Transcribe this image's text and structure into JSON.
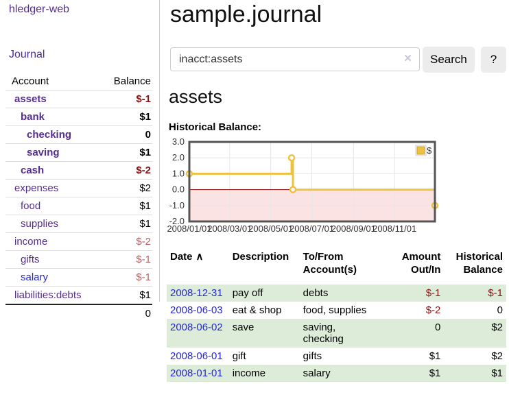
{
  "app": {
    "brand": "hledger-web",
    "nav_journal": "Journal"
  },
  "header": {
    "title": "sample.journal"
  },
  "search": {
    "value": "inacct:assets",
    "clear_icon": "×",
    "button_label": "Search",
    "help_label": "?"
  },
  "account_page": {
    "heading": "assets",
    "chart_label": "Historical Balance:"
  },
  "sidebar": {
    "headers": {
      "account": "Account",
      "balance": "Balance"
    },
    "accounts": [
      {
        "name": "assets",
        "balance": "$-1"
      },
      {
        "name": "bank",
        "balance": "$1"
      },
      {
        "name": "checking",
        "balance": "0"
      },
      {
        "name": "saving",
        "balance": "$1"
      },
      {
        "name": "cash",
        "balance": "$-2"
      },
      {
        "name": "expenses",
        "balance": "$2"
      },
      {
        "name": "food",
        "balance": "$1"
      },
      {
        "name": "supplies",
        "balance": "$1"
      },
      {
        "name": "income",
        "balance": "$-2"
      },
      {
        "name": "gifts",
        "balance": "$-1"
      },
      {
        "name": "salary",
        "balance": "$-1"
      },
      {
        "name": "liabilities:debts",
        "balance": "$1"
      }
    ],
    "total": "0"
  },
  "chart_data": {
    "type": "line",
    "title": "Historical Balance",
    "legend": {
      "label": "$",
      "position": "top-right"
    },
    "ylim": [
      -2,
      3
    ],
    "y_ticks": [
      "3.0",
      "2.0",
      "1.0",
      "0.0",
      "-1.0",
      "-2.0"
    ],
    "xlim_days": [
      0,
      365
    ],
    "x_ticks": [
      {
        "label": "2008/01/01",
        "day": 0
      },
      {
        "label": "2008/03/01",
        "day": 60
      },
      {
        "label": "2008/05/01",
        "day": 121
      },
      {
        "label": "2008/07/01",
        "day": 182
      },
      {
        "label": "2008/09/01",
        "day": 244
      },
      {
        "label": "2008/11/01",
        "day": 305
      }
    ],
    "series": [
      {
        "name": "$",
        "color": "#edc240",
        "step": true,
        "points": [
          {
            "date": "2008-01-01",
            "day": 0,
            "value": 1
          },
          {
            "date": "2008-06-01",
            "day": 152,
            "value": 2
          },
          {
            "date": "2008-06-03",
            "day": 154,
            "value": 0
          },
          {
            "date": "2008-12-31",
            "day": 365,
            "value": -1
          }
        ]
      }
    ],
    "grid": true,
    "negative_region_fill": "#fbe3e3",
    "zero_line_color": "#8b0000"
  },
  "register": {
    "headers": {
      "date": "Date",
      "sort_icon": "∧",
      "description": "Description",
      "tofrom": "To/From\nAccount(s)",
      "amount": "Amount\nOut/In",
      "historical": "Historical\nBalance"
    },
    "rows": [
      {
        "date": "2008-12-31",
        "description": "pay off",
        "tofrom": "debts",
        "amount": "$-1",
        "balance": "$-1"
      },
      {
        "date": "2008-06-03",
        "description": "eat & shop",
        "tofrom": "food, supplies",
        "amount": "$-2",
        "balance": "0"
      },
      {
        "date": "2008-06-02",
        "description": "save",
        "tofrom": "saving,\nchecking",
        "amount": "0",
        "balance": "$2"
      },
      {
        "date": "2008-06-01",
        "description": "gift",
        "tofrom": "gifts",
        "amount": "$1",
        "balance": "$2"
      },
      {
        "date": "2008-01-01",
        "description": "income",
        "tofrom": "salary",
        "amount": "$1",
        "balance": "$1"
      }
    ]
  },
  "colors": {
    "link_purple": "#552d90",
    "link_blue": "#2626d8",
    "negative_dark": "#8b1111",
    "negative_light": "#b36363",
    "row_green": "#ddecd8",
    "chart_line": "#edc240",
    "chart_negative_fill": "#fbe3e3",
    "chart_zero_line": "#8b0000",
    "chart_grid": "#e6e6e6",
    "chart_border": "#545454",
    "button_bg": "#ececec",
    "input_border": "#cccccc"
  }
}
